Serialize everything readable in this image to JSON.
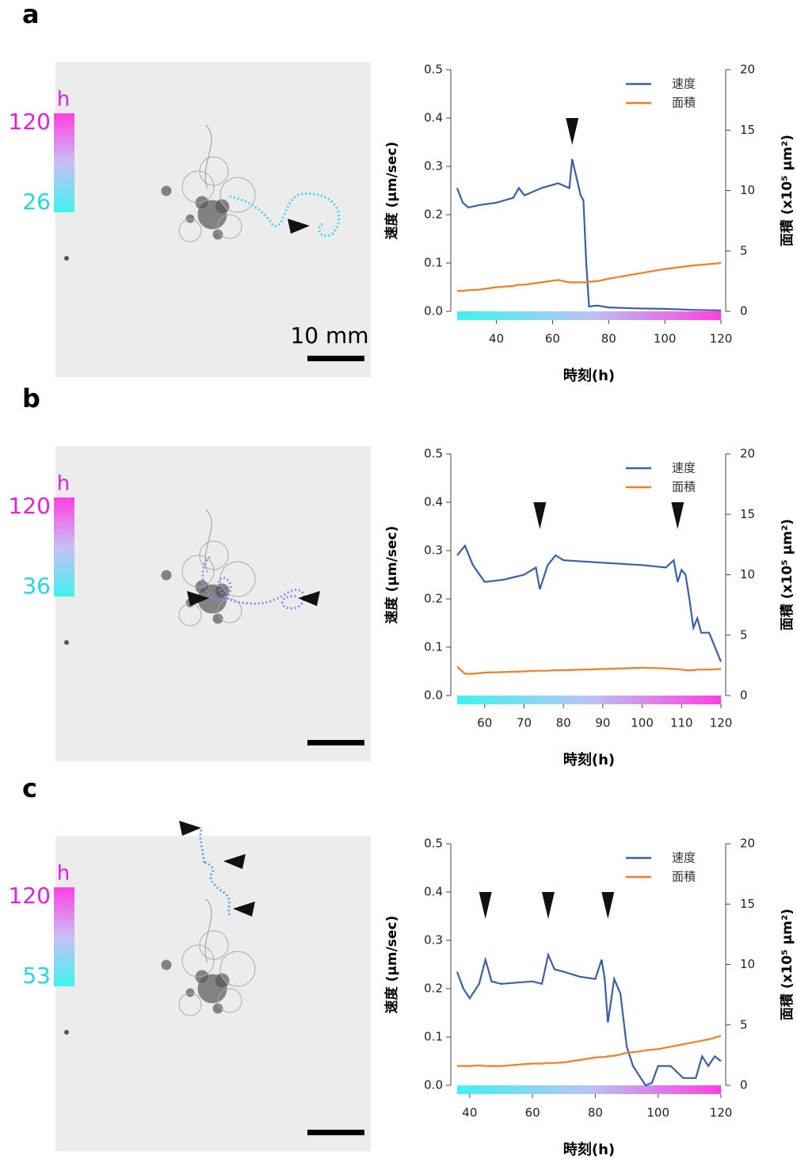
{
  "panels": [
    {
      "label": "a",
      "colorbar_unit": "h",
      "colorbar_max": 120,
      "colorbar_min": 26,
      "scale_bar": "10 mm"
    },
    {
      "label": "b",
      "colorbar_unit": "h",
      "colorbar_max": 120,
      "colorbar_min": 36
    },
    {
      "label": "c",
      "colorbar_unit": "h",
      "colorbar_max": 120,
      "colorbar_min": 53
    }
  ],
  "chart_data": [
    {
      "type": "line",
      "xlabel": "時刻(h)",
      "ylabel": "速度 (μm/sec)",
      "y2label": "面積 (x10⁵ μm²)",
      "x": [
        26,
        28,
        30,
        34,
        40,
        46,
        48,
        50,
        56,
        62,
        64,
        66,
        67,
        68,
        70,
        71,
        72,
        73,
        76,
        80,
        90,
        100,
        110,
        120
      ],
      "series": [
        {
          "name": "速度",
          "color": "#3a5fa8",
          "values": [
            0.255,
            0.225,
            0.215,
            0.22,
            0.225,
            0.235,
            0.255,
            0.24,
            0.255,
            0.265,
            0.26,
            0.255,
            0.315,
            0.29,
            0.24,
            0.23,
            0.1,
            0.01,
            0.012,
            0.008,
            0.006,
            0.005,
            0.003,
            0.002
          ]
        },
        {
          "name": "面積",
          "color": "#f07f22",
          "axis": "y2",
          "values": [
            1.7,
            1.7,
            1.75,
            1.8,
            2.0,
            2.1,
            2.2,
            2.2,
            2.4,
            2.6,
            2.5,
            2.4,
            2.4,
            2.4,
            2.4,
            2.4,
            2.4,
            2.45,
            2.5,
            2.7,
            3.1,
            3.5,
            3.8,
            4.0
          ]
        }
      ],
      "arrows": [
        67
      ],
      "xlim": [
        26,
        120
      ],
      "xticks": [
        40,
        60,
        80,
        100,
        120
      ],
      "ylim": [
        0,
        0.5
      ],
      "yticks": [
        {
          "value": 0,
          "label": "0.0"
        },
        0.1,
        0.2,
        0.3,
        0.4,
        0.5
      ],
      "y2lim": [
        0,
        20
      ],
      "y2ticks": [
        0,
        5,
        10,
        15,
        20
      ],
      "legend": "upper right"
    },
    {
      "type": "line",
      "xlabel": "時刻(h)",
      "ylabel": "速度 (μm/sec)",
      "y2label": "面積 (x10⁵ μm²)",
      "x": [
        53,
        55,
        57,
        60,
        65,
        70,
        73,
        74,
        76,
        78,
        80,
        90,
        100,
        106,
        108,
        109,
        110,
        111,
        112,
        113,
        114,
        115,
        117,
        120
      ],
      "series": [
        {
          "name": "速度",
          "color": "#3a5fa8",
          "values": [
            0.29,
            0.31,
            0.27,
            0.235,
            0.24,
            0.25,
            0.265,
            0.22,
            0.27,
            0.29,
            0.28,
            0.275,
            0.27,
            0.265,
            0.28,
            0.235,
            0.26,
            0.25,
            0.2,
            0.14,
            0.16,
            0.13,
            0.13,
            0.07
          ]
        },
        {
          "name": "面積",
          "color": "#f07f22",
          "axis": "y2",
          "values": [
            2.4,
            1.8,
            1.8,
            1.9,
            1.95,
            2.0,
            2.05,
            2.05,
            2.05,
            2.1,
            2.1,
            2.2,
            2.3,
            2.25,
            2.2,
            2.2,
            2.15,
            2.1,
            2.1,
            2.1,
            2.15,
            2.15,
            2.15,
            2.2
          ]
        }
      ],
      "arrows": [
        74,
        109
      ],
      "xlim": [
        53,
        120
      ],
      "xticks": [
        60,
        70,
        80,
        90,
        100,
        110,
        120
      ],
      "ylim": [
        0,
        0.5
      ],
      "yticks": [
        {
          "value": 0,
          "label": "0.0"
        },
        0.1,
        0.2,
        0.3,
        0.4,
        0.5
      ],
      "y2lim": [
        0,
        20
      ],
      "y2ticks": [
        0,
        5,
        10,
        15,
        20
      ],
      "legend": "upper right"
    },
    {
      "type": "line",
      "xlabel": "時刻(h)",
      "ylabel": "速度 (μm/sec)",
      "y2label": "面積 (x10⁵ μm²)",
      "x": [
        36,
        38,
        40,
        43,
        45,
        47,
        50,
        60,
        63,
        65,
        67,
        70,
        75,
        80,
        82,
        83,
        84,
        86,
        88,
        90,
        92,
        94,
        96,
        98,
        100,
        104,
        108,
        112,
        114,
        116,
        118,
        120
      ],
      "series": [
        {
          "name": "速度",
          "color": "#3a5fa8",
          "values": [
            0.235,
            0.2,
            0.18,
            0.21,
            0.26,
            0.215,
            0.21,
            0.215,
            0.21,
            0.27,
            0.24,
            0.235,
            0.225,
            0.22,
            0.26,
            0.22,
            0.13,
            0.22,
            0.19,
            0.08,
            0.04,
            0.02,
            0.0,
            0.005,
            0.04,
            0.04,
            0.015,
            0.015,
            0.06,
            0.04,
            0.06,
            0.05
          ]
        },
        {
          "name": "面積",
          "color": "#f07f22",
          "axis": "y2",
          "values": [
            1.6,
            1.6,
            1.6,
            1.65,
            1.6,
            1.6,
            1.6,
            1.8,
            1.8,
            1.85,
            1.85,
            1.9,
            2.1,
            2.3,
            2.35,
            2.35,
            2.4,
            2.45,
            2.55,
            2.7,
            2.75,
            2.8,
            2.9,
            2.95,
            3.0,
            3.2,
            3.4,
            3.6,
            3.7,
            3.8,
            3.95,
            4.1
          ]
        }
      ],
      "arrows": [
        45,
        65,
        84
      ],
      "xlim": [
        36,
        120
      ],
      "xticks": [
        40,
        60,
        80,
        100,
        120
      ],
      "ylim": [
        0,
        0.5
      ],
      "yticks": [
        {
          "value": 0,
          "label": "0.0"
        },
        0.1,
        0.2,
        0.3,
        0.4,
        0.5
      ],
      "y2lim": [
        0,
        20
      ],
      "y2ticks": [
        0,
        5,
        10,
        15,
        20
      ],
      "legend": "upper right"
    }
  ]
}
